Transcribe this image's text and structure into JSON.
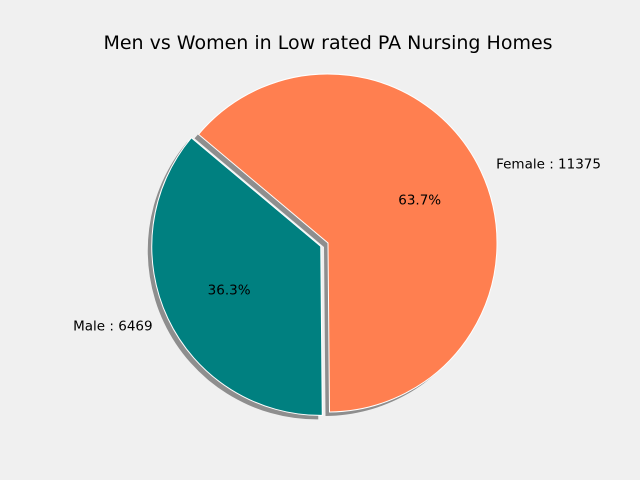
{
  "chart_data": {
    "type": "pie",
    "title": "Men vs Women in Low rated PA Nursing Homes",
    "slices": [
      {
        "label": "Male : 6469",
        "value": 6469,
        "percent": "36.3%",
        "color": "#008080",
        "exploded": true
      },
      {
        "label": "Female : 11375",
        "value": 11375,
        "percent": "63.7%",
        "color": "#ff7f50",
        "exploded": false
      }
    ],
    "shadow": true,
    "legend": "none",
    "background": "#f0f0f0"
  }
}
